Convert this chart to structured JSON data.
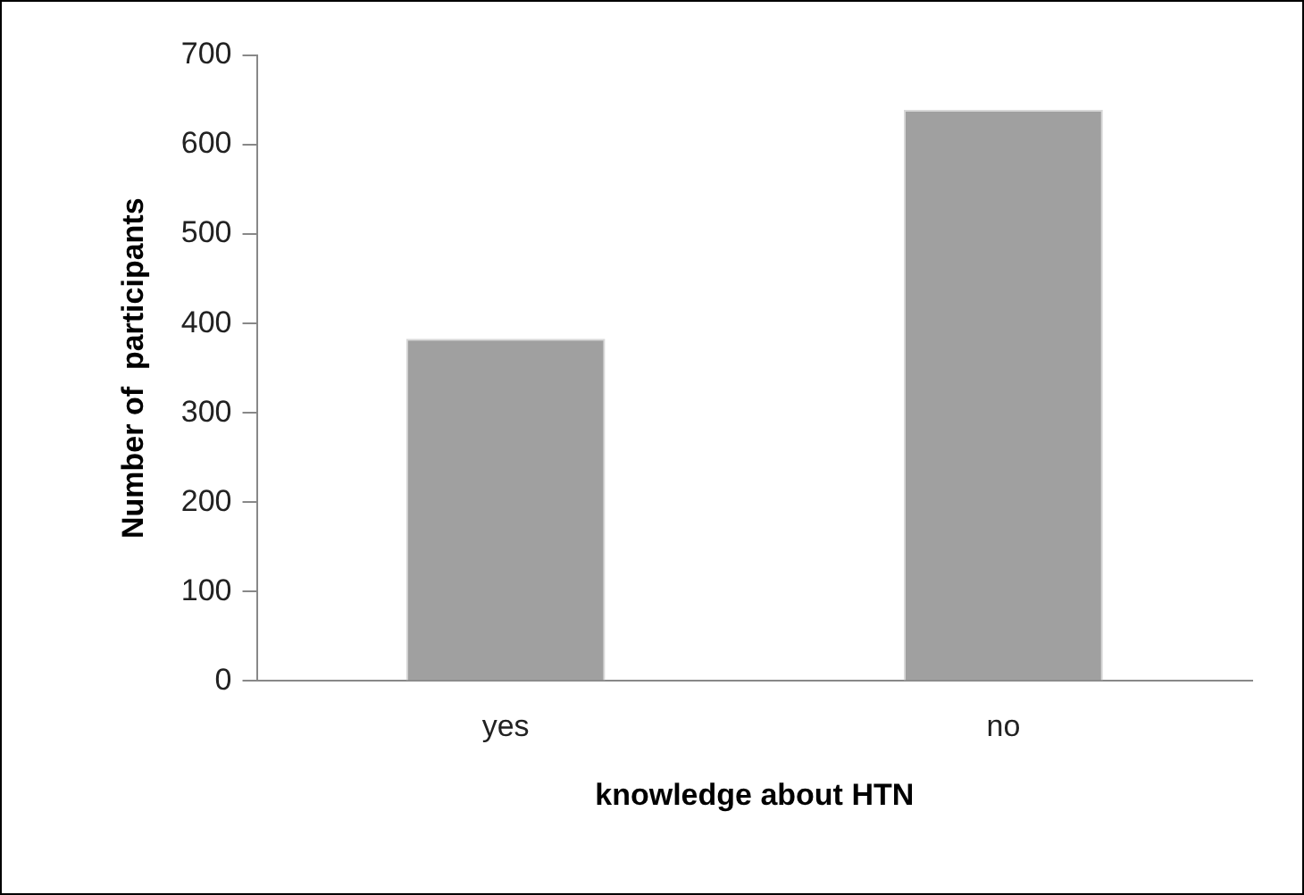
{
  "chart_data": {
    "type": "bar",
    "xlabel": "knowledge about HTN",
    "ylabel": "Number of  participants",
    "categories": [
      "yes",
      "no"
    ],
    "values": [
      383,
      639
    ],
    "color": "#a0a0a0",
    "ylim": [
      0,
      700
    ],
    "yticks": [
      0,
      100,
      200,
      300,
      400,
      500,
      600,
      700
    ],
    "grid": false
  }
}
